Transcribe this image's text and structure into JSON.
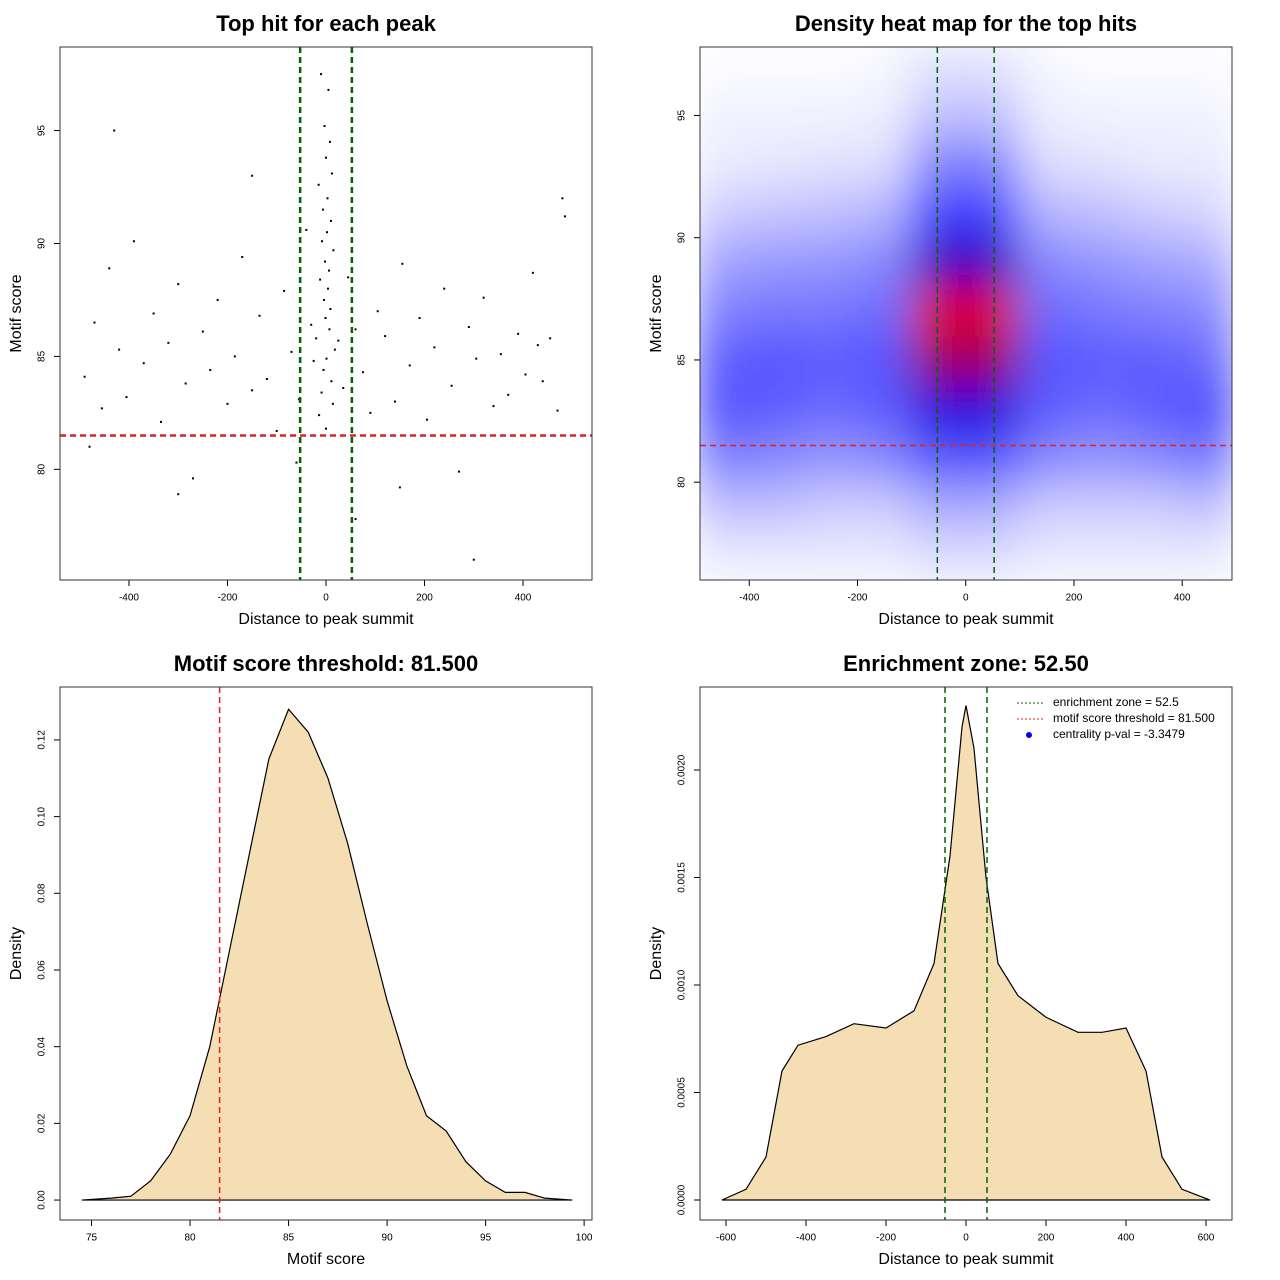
{
  "chart_data": [
    {
      "type": "scatter",
      "title": "Top hit for each peak",
      "xlabel": "Distance to peak summit",
      "ylabel": "Motif score",
      "xlim": [
        -540,
        540
      ],
      "ylim": [
        75.1,
        98.7
      ],
      "xticks": [
        -400,
        -200,
        0,
        200,
        400
      ],
      "yticks": [
        80,
        85,
        90,
        95
      ],
      "color": "#000000",
      "x": [
        -10,
        5,
        -3,
        8,
        0,
        12,
        -15,
        3,
        -6,
        10,
        2,
        -8,
        15,
        -2,
        6,
        -12,
        4,
        -4,
        9,
        -1,
        7,
        -20,
        18,
        1,
        -5,
        11,
        -9,
        14,
        -14,
        0,
        -490,
        -470,
        -455,
        -440,
        -420,
        -405,
        -390,
        -370,
        -350,
        -335,
        -320,
        -300,
        -285,
        -270,
        -250,
        -235,
        -220,
        -200,
        -185,
        -170,
        -150,
        -135,
        -120,
        -100,
        -85,
        -70,
        -55,
        -40,
        -30,
        -25,
        25,
        35,
        45,
        60,
        75,
        90,
        105,
        120,
        140,
        155,
        170,
        190,
        205,
        220,
        240,
        255,
        270,
        290,
        305,
        320,
        340,
        355,
        370,
        390,
        405,
        420,
        440,
        455,
        470,
        485,
        -480,
        -300,
        -150,
        150,
        300,
        480,
        -430,
        -60,
        60,
        430
      ],
      "y": [
        97.5,
        96.8,
        95.2,
        94.5,
        93.8,
        93.1,
        92.6,
        92.0,
        91.5,
        91.0,
        90.5,
        90.1,
        89.7,
        89.2,
        88.8,
        88.4,
        88.0,
        87.5,
        87.1,
        86.7,
        86.2,
        85.8,
        85.3,
        84.9,
        84.4,
        83.9,
        83.4,
        82.9,
        82.4,
        81.8,
        84.1,
        86.5,
        82.7,
        88.9,
        85.3,
        83.2,
        90.1,
        84.7,
        86.9,
        82.1,
        85.6,
        88.2,
        83.8,
        79.6,
        86.1,
        84.4,
        87.5,
        82.9,
        85.0,
        89.4,
        83.5,
        86.8,
        84.0,
        81.7,
        87.9,
        85.2,
        83.1,
        90.6,
        86.4,
        84.8,
        85.7,
        83.6,
        88.5,
        86.2,
        84.3,
        82.5,
        87.0,
        85.9,
        83.0,
        89.1,
        84.6,
        86.7,
        82.2,
        85.4,
        88.0,
        83.7,
        79.9,
        86.3,
        84.9,
        87.6,
        82.8,
        85.1,
        83.3,
        86.0,
        84.2,
        88.7,
        83.9,
        85.8,
        82.6,
        91.2,
        81.0,
        78.9,
        93.0,
        79.2,
        76.0,
        92.0,
        95.0,
        80.3,
        77.8,
        85.5
      ],
      "vlines": [
        {
          "value": -52.5,
          "color": "#006400"
        },
        {
          "value": 52.5,
          "color": "#006400"
        }
      ],
      "hlines": [
        {
          "value": 81.5,
          "color": "#dd2222"
        }
      ]
    },
    {
      "type": "heatmap",
      "title": "Density heat map for the top hits",
      "xlabel": "Distance to peak summit",
      "ylabel": "Motif score",
      "xlim": [
        -491,
        492
      ],
      "ylim": [
        76,
        97.8
      ],
      "xticks": [
        -400,
        -200,
        0,
        200,
        400
      ],
      "yticks": [
        80,
        85,
        90,
        95
      ],
      "colors": [
        "#ffffff",
        "#0000ff",
        "#ff0000"
      ],
      "x": [
        -450,
        -350,
        -250,
        -150,
        -50,
        50,
        150,
        250,
        350,
        450
      ],
      "y": [
        77,
        79,
        81,
        83,
        85,
        87,
        89,
        91,
        93,
        95,
        97
      ],
      "z": [
        [
          0.05,
          0.05,
          0.05,
          0.05,
          0.08,
          0.08,
          0.05,
          0.05,
          0.05,
          0.05
        ],
        [
          0.15,
          0.15,
          0.12,
          0.12,
          0.2,
          0.2,
          0.12,
          0.12,
          0.12,
          0.15
        ],
        [
          0.3,
          0.28,
          0.25,
          0.28,
          0.4,
          0.4,
          0.28,
          0.25,
          0.28,
          0.32
        ],
        [
          0.4,
          0.38,
          0.35,
          0.38,
          0.65,
          0.65,
          0.38,
          0.35,
          0.38,
          0.42
        ],
        [
          0.38,
          0.4,
          0.38,
          0.4,
          0.85,
          0.85,
          0.4,
          0.38,
          0.38,
          0.35
        ],
        [
          0.3,
          0.32,
          0.32,
          0.35,
          0.95,
          0.95,
          0.35,
          0.32,
          0.3,
          0.28
        ],
        [
          0.22,
          0.24,
          0.25,
          0.28,
          0.7,
          0.7,
          0.28,
          0.25,
          0.22,
          0.2
        ],
        [
          0.12,
          0.14,
          0.15,
          0.18,
          0.45,
          0.45,
          0.18,
          0.15,
          0.12,
          0.1
        ],
        [
          0.05,
          0.06,
          0.07,
          0.08,
          0.3,
          0.3,
          0.08,
          0.07,
          0.05,
          0.05
        ],
        [
          0.03,
          0.03,
          0.03,
          0.04,
          0.15,
          0.15,
          0.04,
          0.03,
          0.03,
          0.03
        ],
        [
          0.01,
          0.01,
          0.01,
          0.02,
          0.07,
          0.07,
          0.02,
          0.01,
          0.01,
          0.01
        ]
      ],
      "vlines": [
        {
          "value": -52.5,
          "color": "#006400"
        },
        {
          "value": 52.5,
          "color": "#006400"
        }
      ],
      "hlines": [
        {
          "value": 81.5,
          "color": "#dd2222"
        }
      ]
    },
    {
      "type": "density",
      "title": "Motif score threshold: 81.500",
      "xlabel": "Motif score",
      "ylabel": "Density",
      "xlim": [
        73.4,
        100.4
      ],
      "ylim": [
        -0.0052,
        0.1338
      ],
      "xticks": [
        75,
        80,
        85,
        90,
        95,
        100
      ],
      "yticks": [
        {
          "value": 0,
          "label": "0.00"
        },
        {
          "value": 0.02,
          "label": "0.02"
        },
        {
          "value": 0.04,
          "label": "0.04"
        },
        {
          "value": 0.06,
          "label": "0.06"
        },
        {
          "value": 0.08,
          "label": "0.08"
        },
        {
          "value": 0.1,
          "label": "0.10"
        },
        {
          "value": 0.12,
          "label": "0.12"
        }
      ],
      "fill": "#f5deb3",
      "x": [
        74.5,
        76,
        77,
        78,
        79,
        80,
        81,
        82,
        83,
        84,
        85,
        86,
        87,
        88,
        89,
        90,
        91,
        92,
        93,
        94,
        95,
        96,
        97,
        98,
        99.4
      ],
      "values": [
        0,
        0.0005,
        0.001,
        0.005,
        0.012,
        0.022,
        0.04,
        0.065,
        0.09,
        0.115,
        0.128,
        0.122,
        0.11,
        0.093,
        0.072,
        0.052,
        0.035,
        0.022,
        0.018,
        0.01,
        0.005,
        0.002,
        0.002,
        0.0005,
        0
      ],
      "vlines": [
        {
          "value": 81.5,
          "color": "#dd2222"
        }
      ]
    },
    {
      "type": "density",
      "title": "Enrichment zone: 52.50",
      "xlabel": "Distance to peak summit",
      "ylabel": "Density",
      "xlim": [
        -665,
        665
      ],
      "ylim": [
        -9.3e-05,
        0.002386
      ],
      "xticks": [
        -600,
        -400,
        -200,
        0,
        200,
        400,
        600
      ],
      "yticks": [
        {
          "value": 0,
          "label": "0.0000"
        },
        {
          "value": 0.0005,
          "label": "0.0005"
        },
        {
          "value": 0.001,
          "label": "0.0010"
        },
        {
          "value": 0.0015,
          "label": "0.0015"
        },
        {
          "value": 0.002,
          "label": "0.0020"
        }
      ],
      "fill": "#f5deb3",
      "x": [
        -610,
        -550,
        -500,
        -460,
        -420,
        -350,
        -280,
        -200,
        -130,
        -80,
        -40,
        -10,
        0,
        20,
        50,
        80,
        130,
        200,
        280,
        340,
        400,
        450,
        490,
        540,
        610
      ],
      "values": [
        0,
        5e-05,
        0.0002,
        0.0006,
        0.00072,
        0.00076,
        0.00082,
        0.0008,
        0.00088,
        0.0011,
        0.0016,
        0.0022,
        0.0023,
        0.0021,
        0.0015,
        0.0011,
        0.00095,
        0.00085,
        0.00078,
        0.00078,
        0.0008,
        0.0006,
        0.0002,
        5e-05,
        0
      ],
      "vlines": [
        {
          "value": -52.5,
          "color": "#006400"
        },
        {
          "value": 52.5,
          "color": "#006400"
        }
      ],
      "legend_position": "topright",
      "legend": [
        {
          "label": "enrichment zone = 52.5",
          "color": "#006400",
          "style": "dotted"
        },
        {
          "label": "motif score threshold = 81.500",
          "color": "#dd2222",
          "style": "dotted"
        },
        {
          "label": "centrality p-val = -3.3479",
          "color": "#0000ff",
          "style": "point"
        }
      ]
    }
  ]
}
